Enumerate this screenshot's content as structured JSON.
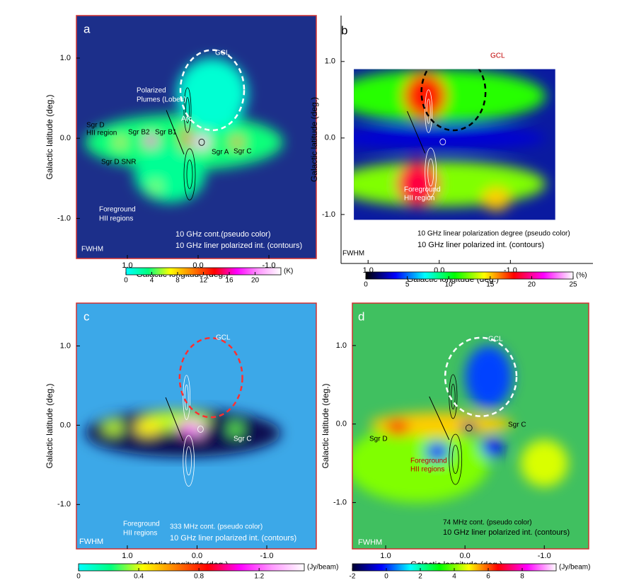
{
  "chart_data": [
    {
      "type": "image",
      "label": "a",
      "xlabel": "Galactic longitude (deg.)",
      "ylabel": "Galactic latitude (deg.)",
      "xlim": [
        1.72,
        -1.67
      ],
      "ylim": [
        -1.5,
        1.53
      ],
      "xticks": [
        {
          "value": 1,
          "label": "1.0"
        },
        {
          "value": 0,
          "label": "0.0"
        },
        {
          "value": -1,
          "label": "-1.0"
        }
      ],
      "yticks": [
        {
          "value": 1,
          "label": "1.0"
        },
        {
          "value": 0,
          "label": "0.0"
        },
        {
          "value": -1,
          "label": "-1.0"
        }
      ],
      "colorbar": {
        "clim": [
          0,
          24
        ],
        "ticks": [
          0,
          4,
          8,
          12,
          16,
          20
        ],
        "unit": "(K)",
        "colormap": [
          "#00ffff",
          "#00ff80",
          "#ffff00",
          "#ff8000",
          "#ff0000",
          "#ff00ff",
          "#ff99ff",
          "#ffffff"
        ]
      },
      "annotations": [
        "GCL",
        "Polarized",
        "Plumes (Lobes)",
        "Sgr D",
        "HII region",
        "Arc",
        "Sgr B2",
        "Sgr B1",
        "Sgr A",
        "Sgr C",
        "Sgr D SNR",
        "Foreground",
        "HII regions",
        "FWHM",
        "10 GHz cont.(pseudo color)",
        "10 GHz liner polarized int. (contours)"
      ]
    },
    {
      "type": "image",
      "label": "b",
      "xlabel": "Galactic longitude (deg.)",
      "ylabel": "Galactic latitude (deg.)",
      "xlim": [
        1.38,
        -2.16
      ],
      "ylim": [
        -1.64,
        1.6
      ],
      "xticks": [
        {
          "value": 1,
          "label": "1.0"
        },
        {
          "value": 0,
          "label": "0.0"
        },
        {
          "value": -1,
          "label": "-1.0"
        }
      ],
      "yticks": [
        {
          "value": 1,
          "label": "1.0"
        },
        {
          "value": 0,
          "label": "0.0"
        },
        {
          "value": -1,
          "label": "-1.0"
        }
      ],
      "colorbar": {
        "clim": [
          0,
          25
        ],
        "ticks": [
          0,
          5,
          10,
          15,
          20,
          25
        ],
        "unit": "(%)",
        "colormap": [
          "#000000",
          "#0000ff",
          "#00ffff",
          "#00ff00",
          "#ffff00",
          "#ff0000",
          "#ff00ff",
          "#ffffff"
        ]
      },
      "annotations": [
        "GCL",
        "Foreground",
        "HII region",
        "10 GHz linear polarization degree (pseudo color)",
        "10 GHz liner polarized int. (contours)",
        "FWHM"
      ]
    },
    {
      "type": "image",
      "label": "c",
      "xlabel": "Galactic longitude (deg.)",
      "ylabel": "Galactic latitude (deg.)",
      "xlim": [
        1.73,
        -1.71
      ],
      "ylim": [
        -1.56,
        1.54
      ],
      "xticks": [
        {
          "value": 1,
          "label": "1.0"
        },
        {
          "value": 0,
          "label": "0.0"
        },
        {
          "value": -1,
          "label": "-1.0"
        }
      ],
      "yticks": [
        {
          "value": 1,
          "label": "1.0"
        },
        {
          "value": 0,
          "label": "0.0"
        },
        {
          "value": -1,
          "label": "-1.0"
        }
      ],
      "colorbar": {
        "clim": [
          0,
          1.5
        ],
        "ticks": [
          0,
          0.4,
          0.8,
          1.2
        ],
        "unit": "(Jy/beam)",
        "colormap": [
          "#00ffff",
          "#00ff80",
          "#ffff00",
          "#ff8000",
          "#ff0000",
          "#ff00ff",
          "#ff99ff",
          "#ffffff"
        ]
      },
      "annotations": [
        "GCL",
        "Sgr C",
        "Foreground",
        "HII regions",
        "333 MHz cont. (pseudo color)",
        "10 GHz liner polarized int. (contours)",
        "FWHM"
      ]
    },
    {
      "type": "image",
      "label": "d",
      "xlabel": "Galactic longitude (deg.)",
      "ylabel": "Galactic latitude (deg.)",
      "xlim": [
        1.42,
        -1.56
      ],
      "ylim": [
        -1.59,
        1.54
      ],
      "xticks": [
        {
          "value": 1,
          "label": "1.0"
        },
        {
          "value": 0,
          "label": "0.0"
        },
        {
          "value": -1,
          "label": "-1.0"
        }
      ],
      "yticks": [
        {
          "value": 1,
          "label": "1.0"
        },
        {
          "value": 0,
          "label": "0.0"
        },
        {
          "value": -1,
          "label": "-1.0"
        }
      ],
      "colorbar": {
        "clim": [
          -2,
          10
        ],
        "ticks": [
          -2,
          0,
          2,
          4,
          6,
          8
        ],
        "unit": "(Jy/beam)",
        "colormap": [
          "#000033",
          "#0000ff",
          "#00ffff",
          "#00ff00",
          "#ffff00",
          "#ff0000",
          "#ff00ff",
          "#ffffff"
        ]
      },
      "annotations": [
        "GCL",
        "Sgr D",
        "Sgr C",
        "Foreground",
        "HII regions",
        "74 MHz cont. (pseudo color)",
        "10 GHz liner polarized int. (contours)",
        "FWHM"
      ]
    }
  ]
}
